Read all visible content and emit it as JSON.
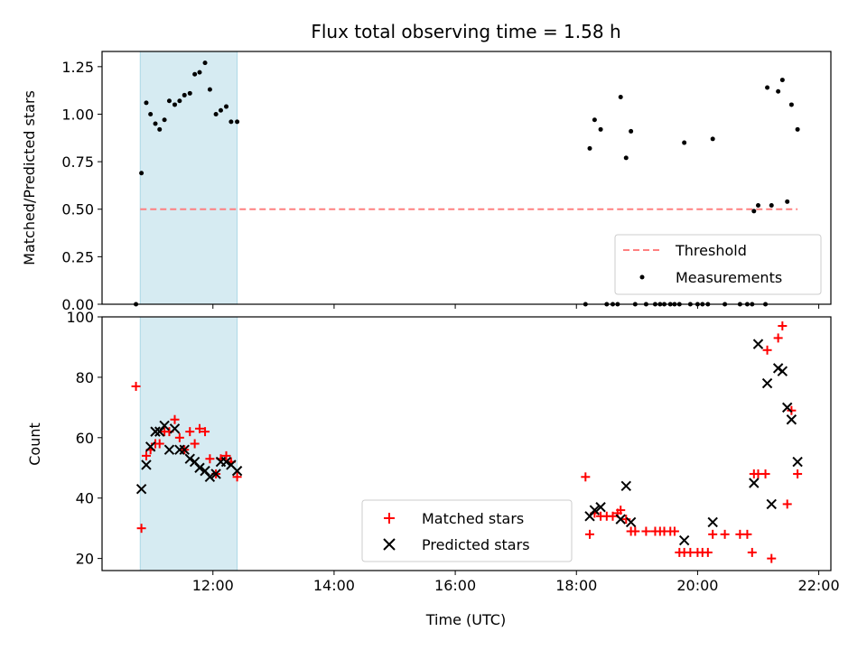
{
  "chart_data": [
    {
      "type": "scatter",
      "title": "Flux total observing time = 1.58 h",
      "xlabel": "",
      "ylabel": "Matched/Predicted stars",
      "xlim": [
        10.17,
        22.2
      ],
      "ylim": [
        0,
        1.33
      ],
      "x_ticks": [
        {
          "value": 12,
          "label": ""
        },
        {
          "value": 14,
          "label": ""
        },
        {
          "value": 16,
          "label": ""
        },
        {
          "value": 18,
          "label": ""
        },
        {
          "value": 20,
          "label": ""
        },
        {
          "value": 22,
          "label": ""
        }
      ],
      "y_ticks": [
        {
          "value": 0,
          "label": "0.00"
        },
        {
          "value": 0.25,
          "label": "0.25"
        },
        {
          "value": 0.5,
          "label": "0.50"
        },
        {
          "value": 0.75,
          "label": "0.75"
        },
        {
          "value": 1.0,
          "label": "1.00"
        },
        {
          "value": 1.25,
          "label": "1.25"
        }
      ],
      "shaded_span": {
        "x": [
          10.8,
          12.4
        ],
        "color": "#add8e6"
      },
      "threshold": {
        "name": "Threshold",
        "y": 0.5,
        "x": [
          10.8,
          21.65
        ],
        "color": "#ff8080"
      },
      "series": [
        {
          "name": "Measurements",
          "marker": "dot",
          "color": "#000000",
          "points": [
            [
              10.73,
              0.0
            ],
            [
              10.82,
              0.69
            ],
            [
              10.9,
              1.06
            ],
            [
              10.97,
              1.0
            ],
            [
              11.05,
              0.95
            ],
            [
              11.12,
              0.92
            ],
            [
              11.2,
              0.97
            ],
            [
              11.28,
              1.07
            ],
            [
              11.37,
              1.05
            ],
            [
              11.45,
              1.07
            ],
            [
              11.53,
              1.1
            ],
            [
              11.62,
              1.11
            ],
            [
              11.7,
              1.21
            ],
            [
              11.78,
              1.22
            ],
            [
              11.87,
              1.27
            ],
            [
              11.95,
              1.13
            ],
            [
              12.05,
              1.0
            ],
            [
              12.13,
              1.02
            ],
            [
              12.22,
              1.04
            ],
            [
              12.3,
              0.96
            ],
            [
              12.4,
              0.96
            ],
            [
              18.15,
              0.0
            ],
            [
              18.22,
              0.82
            ],
            [
              18.3,
              0.97
            ],
            [
              18.4,
              0.92
            ],
            [
              18.5,
              0.0
            ],
            [
              18.6,
              0.0
            ],
            [
              18.68,
              0.0
            ],
            [
              18.73,
              1.09
            ],
            [
              18.82,
              0.77
            ],
            [
              18.9,
              0.91
            ],
            [
              18.97,
              0.0
            ],
            [
              19.15,
              0.0
            ],
            [
              19.3,
              0.0
            ],
            [
              19.38,
              0.0
            ],
            [
              19.45,
              0.0
            ],
            [
              19.55,
              0.0
            ],
            [
              19.62,
              0.0
            ],
            [
              19.7,
              0.0
            ],
            [
              19.78,
              0.85
            ],
            [
              19.88,
              0.0
            ],
            [
              20.0,
              0.0
            ],
            [
              20.08,
              0.0
            ],
            [
              20.17,
              0.0
            ],
            [
              20.25,
              0.87
            ],
            [
              20.45,
              0.0
            ],
            [
              20.7,
              0.0
            ],
            [
              20.82,
              0.0
            ],
            [
              20.9,
              0.0
            ],
            [
              20.93,
              0.49
            ],
            [
              21.0,
              0.52
            ],
            [
              21.12,
              0.0
            ],
            [
              21.15,
              1.14
            ],
            [
              21.22,
              0.52
            ],
            [
              21.33,
              1.12
            ],
            [
              21.4,
              1.18
            ],
            [
              21.48,
              0.54
            ],
            [
              21.55,
              1.05
            ],
            [
              21.65,
              0.92
            ]
          ]
        }
      ],
      "legend": {
        "position": "lower-right",
        "entries": [
          "Threshold",
          "Measurements"
        ]
      }
    },
    {
      "type": "scatter",
      "title": "",
      "xlabel": "Time (UTC)",
      "ylabel": "Count",
      "xlim": [
        10.17,
        22.2
      ],
      "ylim": [
        16,
        100
      ],
      "x_ticks": [
        {
          "value": 12,
          "label": "12:00"
        },
        {
          "value": 14,
          "label": "14:00"
        },
        {
          "value": 16,
          "label": "16:00"
        },
        {
          "value": 18,
          "label": "18:00"
        },
        {
          "value": 20,
          "label": "20:00"
        },
        {
          "value": 22,
          "label": "22:00"
        }
      ],
      "y_ticks": [
        {
          "value": 20,
          "label": "20"
        },
        {
          "value": 40,
          "label": "40"
        },
        {
          "value": 60,
          "label": "60"
        },
        {
          "value": 80,
          "label": "80"
        },
        {
          "value": 100,
          "label": "100"
        }
      ],
      "shaded_span": {
        "x": [
          10.8,
          12.4
        ],
        "color": "#add8e6"
      },
      "series": [
        {
          "name": "Matched stars",
          "marker": "plus",
          "color": "#ff0000",
          "points": [
            [
              10.73,
              77
            ],
            [
              10.82,
              30
            ],
            [
              10.9,
              54
            ],
            [
              10.97,
              56
            ],
            [
              11.05,
              58
            ],
            [
              11.12,
              58
            ],
            [
              11.2,
              62
            ],
            [
              11.28,
              62
            ],
            [
              11.37,
              66
            ],
            [
              11.45,
              60
            ],
            [
              11.53,
              56
            ],
            [
              11.62,
              62
            ],
            [
              11.7,
              58
            ],
            [
              11.78,
              63
            ],
            [
              11.87,
              62
            ],
            [
              11.95,
              53
            ],
            [
              12.05,
              48
            ],
            [
              12.13,
              53
            ],
            [
              12.22,
              54
            ],
            [
              12.3,
              52
            ],
            [
              12.4,
              47
            ],
            [
              18.15,
              47
            ],
            [
              18.22,
              28
            ],
            [
              18.3,
              35
            ],
            [
              18.4,
              34
            ],
            [
              18.5,
              34
            ],
            [
              18.6,
              34
            ],
            [
              18.68,
              35
            ],
            [
              18.73,
              36
            ],
            [
              18.82,
              33
            ],
            [
              18.9,
              29
            ],
            [
              18.97,
              29
            ],
            [
              19.15,
              29
            ],
            [
              19.3,
              29
            ],
            [
              19.38,
              29
            ],
            [
              19.45,
              29
            ],
            [
              19.55,
              29
            ],
            [
              19.62,
              29
            ],
            [
              19.7,
              22
            ],
            [
              19.78,
              22
            ],
            [
              19.88,
              22
            ],
            [
              20.0,
              22
            ],
            [
              20.08,
              22
            ],
            [
              20.17,
              22
            ],
            [
              20.25,
              28
            ],
            [
              20.45,
              28
            ],
            [
              20.7,
              28
            ],
            [
              20.82,
              28
            ],
            [
              20.9,
              22
            ],
            [
              20.93,
              48
            ],
            [
              21.0,
              48
            ],
            [
              21.12,
              48
            ],
            [
              21.15,
              89
            ],
            [
              21.22,
              20
            ],
            [
              21.33,
              93
            ],
            [
              21.4,
              97
            ],
            [
              21.48,
              38
            ],
            [
              21.55,
              69
            ],
            [
              21.65,
              48
            ]
          ]
        },
        {
          "name": "Predicted stars",
          "marker": "x",
          "color": "#000000",
          "points": [
            [
              10.82,
              43
            ],
            [
              10.9,
              51
            ],
            [
              10.97,
              57
            ],
            [
              11.05,
              62
            ],
            [
              11.12,
              62
            ],
            [
              11.2,
              64
            ],
            [
              11.28,
              56
            ],
            [
              11.37,
              63
            ],
            [
              11.45,
              56
            ],
            [
              11.53,
              56
            ],
            [
              11.62,
              53
            ],
            [
              11.7,
              52
            ],
            [
              11.78,
              50
            ],
            [
              11.87,
              49
            ],
            [
              11.95,
              47
            ],
            [
              12.05,
              48
            ],
            [
              12.13,
              52
            ],
            [
              12.22,
              52
            ],
            [
              12.3,
              51
            ],
            [
              12.4,
              49
            ],
            [
              18.22,
              34
            ],
            [
              18.3,
              36
            ],
            [
              18.4,
              37
            ],
            [
              18.73,
              33
            ],
            [
              18.82,
              44
            ],
            [
              18.9,
              32
            ],
            [
              19.78,
              26
            ],
            [
              20.25,
              32
            ],
            [
              20.93,
              45
            ],
            [
              21.0,
              91
            ],
            [
              21.15,
              78
            ],
            [
              21.22,
              38
            ],
            [
              21.33,
              83
            ],
            [
              21.4,
              82
            ],
            [
              21.48,
              70
            ],
            [
              21.55,
              66
            ],
            [
              21.65,
              52
            ]
          ]
        }
      ],
      "legend": {
        "position": "lower-center",
        "entries": [
          "Matched stars",
          "Predicted stars"
        ]
      }
    }
  ]
}
